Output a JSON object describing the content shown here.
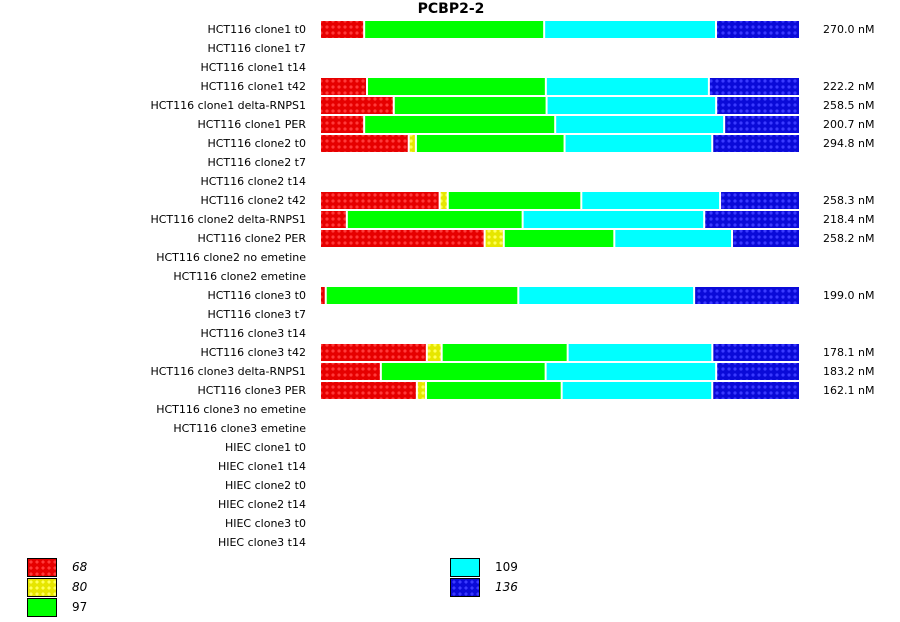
{
  "chart_data": {
    "type": "bar",
    "orientation": "horizontal",
    "stacked": "percent",
    "title": "PCBP2-2",
    "xlabel": "",
    "ylabel": "",
    "grid": false,
    "legend_position": "bottom",
    "series": [
      {
        "name": "68",
        "color": "#ee0000",
        "pattern": "dotted",
        "italic": true
      },
      {
        "name": "80",
        "color": "#eeee00",
        "pattern": "dotted",
        "italic": true
      },
      {
        "name": "97",
        "color": "#00ff00",
        "pattern": "solid",
        "italic": false
      },
      {
        "name": "109",
        "color": "#00ffff",
        "pattern": "solid",
        "italic": false
      },
      {
        "name": "136",
        "color": "#0000dd",
        "pattern": "dotted",
        "italic": true
      }
    ],
    "rows": [
      {
        "label": "HCT116 clone1 t0",
        "values": [
          9.2,
          0,
          37.5,
          35.8,
          17.5
        ],
        "total": "270.0 nM"
      },
      {
        "label": "HCT116 clone1 t7",
        "values": null,
        "total": ""
      },
      {
        "label": "HCT116 clone1 t14",
        "values": null,
        "total": ""
      },
      {
        "label": "HCT116 clone1 t42",
        "values": [
          9.8,
          0,
          37.3,
          34.0,
          19.0
        ],
        "total": "222.2 nM"
      },
      {
        "label": "HCT116 clone1 delta-RNPS1",
        "values": [
          15.4,
          0,
          31.9,
          35.4,
          17.5
        ],
        "total": "258.5 nM"
      },
      {
        "label": "HCT116 clone1 PER",
        "values": [
          9.2,
          0,
          39.8,
          35.2,
          15.8
        ],
        "total": "200.7 nM"
      },
      {
        "label": "HCT116 clone2 t0",
        "values": [
          18.5,
          1.5,
          31.0,
          30.8,
          18.3
        ],
        "total": "294.8 nM"
      },
      {
        "label": "HCT116 clone2 t7",
        "values": null,
        "total": ""
      },
      {
        "label": "HCT116 clone2 t14",
        "values": null,
        "total": ""
      },
      {
        "label": "HCT116 clone2 t42",
        "values": [
          25.0,
          1.7,
          27.9,
          29.0,
          16.7
        ],
        "total": "258.3 nM"
      },
      {
        "label": "HCT116 clone2 delta-RNPS1",
        "values": [
          5.6,
          0,
          36.7,
          37.9,
          20.0
        ],
        "total": "218.4 nM"
      },
      {
        "label": "HCT116 clone2 PER",
        "values": [
          34.4,
          4.0,
          23.1,
          24.6,
          14.2
        ],
        "total": "258.2 nM"
      },
      {
        "label": "HCT116 clone2 no emetine",
        "values": null,
        "total": ""
      },
      {
        "label": "HCT116 clone2 emetine",
        "values": null,
        "total": ""
      },
      {
        "label": "HCT116 clone3 t0",
        "values": [
          1.2,
          0,
          40.2,
          36.7,
          22.1
        ],
        "total": "199.0 nM"
      },
      {
        "label": "HCT116 clone3 t7",
        "values": null,
        "total": ""
      },
      {
        "label": "HCT116 clone3 t14",
        "values": null,
        "total": ""
      },
      {
        "label": "HCT116 clone3 t42",
        "values": [
          22.3,
          3.1,
          26.3,
          30.2,
          18.3
        ],
        "total": "178.1 nM"
      },
      {
        "label": "HCT116 clone3 delta-RNPS1",
        "values": [
          12.7,
          0,
          34.4,
          35.6,
          17.5
        ],
        "total": "183.2 nM"
      },
      {
        "label": "HCT116 clone3 PER",
        "values": [
          20.2,
          1.9,
          28.3,
          31.4,
          18.3
        ],
        "total": "162.1 nM"
      },
      {
        "label": "HCT116 clone3 no emetine",
        "values": null,
        "total": ""
      },
      {
        "label": "HCT116 clone3 emetine",
        "values": null,
        "total": ""
      },
      {
        "label": "HIEC clone1 t0",
        "values": null,
        "total": ""
      },
      {
        "label": "HIEC clone1 t14",
        "values": null,
        "total": ""
      },
      {
        "label": "HIEC clone2 t0",
        "values": null,
        "total": ""
      },
      {
        "label": "HIEC clone2 t14",
        "values": null,
        "total": ""
      },
      {
        "label": "HIEC clone3 t0",
        "values": null,
        "total": ""
      },
      {
        "label": "HIEC clone3 t14",
        "values": null,
        "total": ""
      }
    ]
  }
}
